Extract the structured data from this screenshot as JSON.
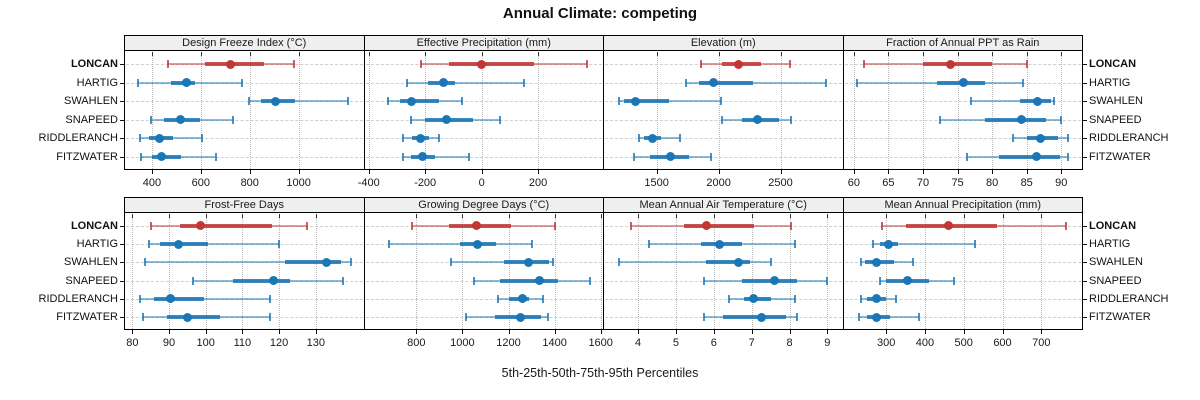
{
  "title": "Annual Climate: competing",
  "caption": "5th-25th-50th-75th-95th Percentiles",
  "sites": [
    "LONCAN",
    "HARTIG",
    "SWAHLEN",
    "SNAPEED",
    "RIDDLERANCH",
    "FITZWATER"
  ],
  "highlight_site": "LONCAN",
  "colors": {
    "highlight": "#c13636",
    "normal": "#1a76b4",
    "header_bg": "#efefef",
    "panel_border": "#000000",
    "grid": "#c4c4c4"
  },
  "chart_data": [
    {
      "type": "dot-interval",
      "title": "Design Freeze Index (°C)",
      "percentiles": [
        5,
        25,
        50,
        75,
        95
      ],
      "xticks": [
        400,
        600,
        800,
        1000
      ],
      "xlim": [
        290,
        1265
      ],
      "series": [
        {
          "name": "LONCAN",
          "values": [
            465,
            615,
            720,
            860,
            980
          ]
        },
        {
          "name": "HARTIG",
          "values": [
            345,
            480,
            540,
            575,
            770
          ]
        },
        {
          "name": "SWAHLEN",
          "values": [
            795,
            845,
            905,
            985,
            1200
          ]
        },
        {
          "name": "SNAPEED",
          "values": [
            395,
            450,
            515,
            595,
            730
          ]
        },
        {
          "name": "RIDDLERANCH",
          "values": [
            350,
            390,
            430,
            485,
            605
          ]
        },
        {
          "name": "FITZWATER",
          "values": [
            355,
            400,
            440,
            520,
            660
          ]
        }
      ]
    },
    {
      "type": "dot-interval",
      "title": "Effective Precipitation (mm)",
      "percentiles": [
        5,
        25,
        50,
        75,
        95
      ],
      "xticks": [
        -400,
        -200,
        0,
        200
      ],
      "xlim": [
        -415,
        430
      ],
      "series": [
        {
          "name": "LONCAN",
          "values": [
            -215,
            -115,
            0,
            185,
            375
          ]
        },
        {
          "name": "HARTIG",
          "values": [
            -265,
            -190,
            -135,
            -95,
            150
          ]
        },
        {
          "name": "SWAHLEN",
          "values": [
            -330,
            -290,
            -250,
            -150,
            -70
          ]
        },
        {
          "name": "SNAPEED",
          "values": [
            -250,
            -200,
            -125,
            -30,
            65
          ]
        },
        {
          "name": "RIDDLERANCH",
          "values": [
            -280,
            -245,
            -215,
            -185,
            -150
          ]
        },
        {
          "name": "FITZWATER",
          "values": [
            -280,
            -250,
            -210,
            -165,
            -45
          ]
        }
      ]
    },
    {
      "type": "dot-interval",
      "title": "Elevation (m)",
      "percentiles": [
        5,
        25,
        50,
        75,
        95
      ],
      "xticks": [
        1500,
        2000,
        2500
      ],
      "xlim": [
        1075,
        3000
      ],
      "series": [
        {
          "name": "LONCAN",
          "values": [
            1860,
            2025,
            2160,
            2345,
            2580
          ]
        },
        {
          "name": "HARTIG",
          "values": [
            1740,
            1840,
            1960,
            2280,
            2870
          ]
        },
        {
          "name": "SWAHLEN",
          "values": [
            1195,
            1240,
            1330,
            1600,
            2020
          ]
        },
        {
          "name": "SNAPEED",
          "values": [
            2030,
            2185,
            2315,
            2490,
            2585
          ]
        },
        {
          "name": "RIDDLERANCH",
          "values": [
            1360,
            1400,
            1470,
            1535,
            1690
          ]
        },
        {
          "name": "FITZWATER",
          "values": [
            1320,
            1450,
            1615,
            1765,
            1940
          ]
        }
      ]
    },
    {
      "type": "dot-interval",
      "title": "Fraction of Annual PPT as Rain",
      "percentiles": [
        5,
        25,
        50,
        75,
        95
      ],
      "xticks": [
        60,
        65,
        70,
        75,
        80,
        85,
        90
      ],
      "xlim": [
        58.5,
        93
      ],
      "series": [
        {
          "name": "LONCAN",
          "values": [
            61.5,
            70,
            74,
            80,
            85
          ]
        },
        {
          "name": "HARTIG",
          "values": [
            60.5,
            72,
            75.8,
            79,
            84.5
          ]
        },
        {
          "name": "SWAHLEN",
          "values": [
            77,
            84,
            86.5,
            88.5,
            89
          ]
        },
        {
          "name": "SNAPEED",
          "values": [
            72.5,
            79,
            84.3,
            87.8,
            90
          ]
        },
        {
          "name": "RIDDLERANCH",
          "values": [
            83,
            85,
            87,
            89.5,
            91
          ]
        },
        {
          "name": "FITZWATER",
          "values": [
            76.3,
            81,
            86.4,
            89.8,
            91
          ]
        }
      ]
    },
    {
      "type": "dot-interval",
      "title": "Frost-Free Days",
      "percentiles": [
        5,
        25,
        50,
        75,
        95
      ],
      "xticks": [
        80,
        90,
        100,
        110,
        120,
        130
      ],
      "xlim": [
        78,
        143
      ],
      "series": [
        {
          "name": "LONCAN",
          "values": [
            85,
            93,
            98.5,
            118,
            127.5
          ]
        },
        {
          "name": "HARTIG",
          "values": [
            84.5,
            87.5,
            92.5,
            100.5,
            120
          ]
        },
        {
          "name": "SWAHLEN",
          "values": [
            83.5,
            121.5,
            133,
            137,
            139.5
          ]
        },
        {
          "name": "SNAPEED",
          "values": [
            96.5,
            107.5,
            118.5,
            123,
            137.5
          ]
        },
        {
          "name": "RIDDLERANCH",
          "values": [
            82,
            86,
            90.5,
            99.5,
            117.5
          ]
        },
        {
          "name": "FITZWATER",
          "values": [
            83,
            89.5,
            95,
            104,
            117.5
          ]
        }
      ]
    },
    {
      "type": "dot-interval",
      "title": "Growing Degree Days (°C)",
      "percentiles": [
        5,
        25,
        50,
        75,
        95
      ],
      "xticks": [
        800,
        1000,
        1200,
        1400,
        1600
      ],
      "xlim": [
        575,
        1610
      ],
      "series": [
        {
          "name": "LONCAN",
          "values": [
            780,
            940,
            1060,
            1210,
            1400
          ]
        },
        {
          "name": "HARTIG",
          "values": [
            680,
            990,
            1065,
            1145,
            1300
          ]
        },
        {
          "name": "SWAHLEN",
          "values": [
            950,
            1180,
            1285,
            1375,
            1395
          ]
        },
        {
          "name": "SNAPEED",
          "values": [
            1050,
            1165,
            1335,
            1415,
            1555
          ]
        },
        {
          "name": "RIDDLERANCH",
          "values": [
            1155,
            1200,
            1260,
            1290,
            1350
          ]
        },
        {
          "name": "FITZWATER",
          "values": [
            1015,
            1140,
            1250,
            1340,
            1370
          ]
        }
      ]
    },
    {
      "type": "dot-interval",
      "title": "Mean Annual Air Temperature (°C)",
      "percentiles": [
        5,
        25,
        50,
        75,
        95
      ],
      "xticks": [
        4,
        5,
        6,
        7,
        8,
        9
      ],
      "xlim": [
        3.1,
        9.4
      ],
      "series": [
        {
          "name": "LONCAN",
          "values": [
            3.8,
            5.2,
            5.8,
            7.05,
            8.05
          ]
        },
        {
          "name": "HARTIG",
          "values": [
            4.3,
            5.65,
            6.15,
            6.75,
            8.15
          ]
        },
        {
          "name": "SWAHLEN",
          "values": [
            3.5,
            5.8,
            6.65,
            6.95,
            7.5
          ]
        },
        {
          "name": "SNAPEED",
          "values": [
            5.75,
            6.75,
            7.6,
            8.2,
            9.0
          ]
        },
        {
          "name": "RIDDLERANCH",
          "values": [
            6.4,
            6.8,
            7.05,
            7.5,
            8.15
          ]
        },
        {
          "name": "FITZWATER",
          "values": [
            5.75,
            6.25,
            7.25,
            7.9,
            8.2
          ]
        }
      ]
    },
    {
      "type": "dot-interval",
      "title": "Mean Annual Precipitation (mm)",
      "percentiles": [
        5,
        25,
        50,
        75,
        95
      ],
      "xticks": [
        300,
        400,
        500,
        600,
        700
      ],
      "xlim": [
        190,
        805
      ],
      "series": [
        {
          "name": "LONCAN",
          "values": [
            290,
            350,
            460,
            585,
            765
          ]
        },
        {
          "name": "HARTIG",
          "values": [
            265,
            285,
            305,
            330,
            530
          ]
        },
        {
          "name": "SWAHLEN",
          "values": [
            235,
            245,
            275,
            320,
            370
          ]
        },
        {
          "name": "SNAPEED",
          "values": [
            285,
            300,
            355,
            410,
            475
          ]
        },
        {
          "name": "RIDDLERANCH",
          "values": [
            235,
            250,
            275,
            300,
            325
          ]
        },
        {
          "name": "FITZWATER",
          "values": [
            230,
            250,
            275,
            310,
            385
          ]
        }
      ]
    }
  ]
}
